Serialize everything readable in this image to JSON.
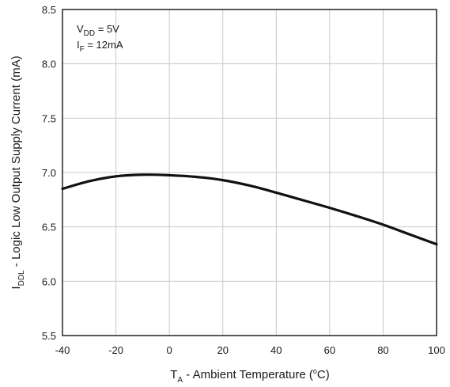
{
  "chart_data": {
    "type": "line",
    "title": "",
    "xlabel": {
      "main": "T",
      "sub": "A",
      "rest": " - Ambient Temperature (",
      "sup": "o",
      "end": "C)"
    },
    "ylabel": {
      "main": "I",
      "sub": "DDL",
      "rest": " - Logic Low Output Supply Current (mA)"
    },
    "xlim": [
      -40,
      100
    ],
    "ylim": [
      5.5,
      8.5
    ],
    "xticks": [
      -40,
      -20,
      0,
      20,
      40,
      60,
      80,
      100
    ],
    "yticks": [
      5.5,
      6.0,
      6.5,
      7.0,
      7.5,
      8.0,
      8.5
    ],
    "xtick_labels": [
      "-40",
      "-20",
      "0",
      "20",
      "40",
      "60",
      "80",
      "100"
    ],
    "ytick_labels": [
      "5.5",
      "6.0",
      "6.5",
      "7.0",
      "7.5",
      "8.0",
      "8.5"
    ],
    "grid": true,
    "annotations": [
      {
        "main": "V",
        "sub": "DD",
        "rest": " = 5V"
      },
      {
        "main": "I",
        "sub": "F",
        "rest": " = 12mA"
      }
    ],
    "series": [
      {
        "x": [
          -40,
          -30,
          -20,
          -10,
          0,
          10,
          20,
          30,
          40,
          50,
          60,
          70,
          80,
          90,
          100
        ],
        "y": [
          6.85,
          6.92,
          6.965,
          6.98,
          6.975,
          6.96,
          6.93,
          6.88,
          6.815,
          6.745,
          6.675,
          6.6,
          6.52,
          6.43,
          6.34
        ]
      }
    ]
  }
}
